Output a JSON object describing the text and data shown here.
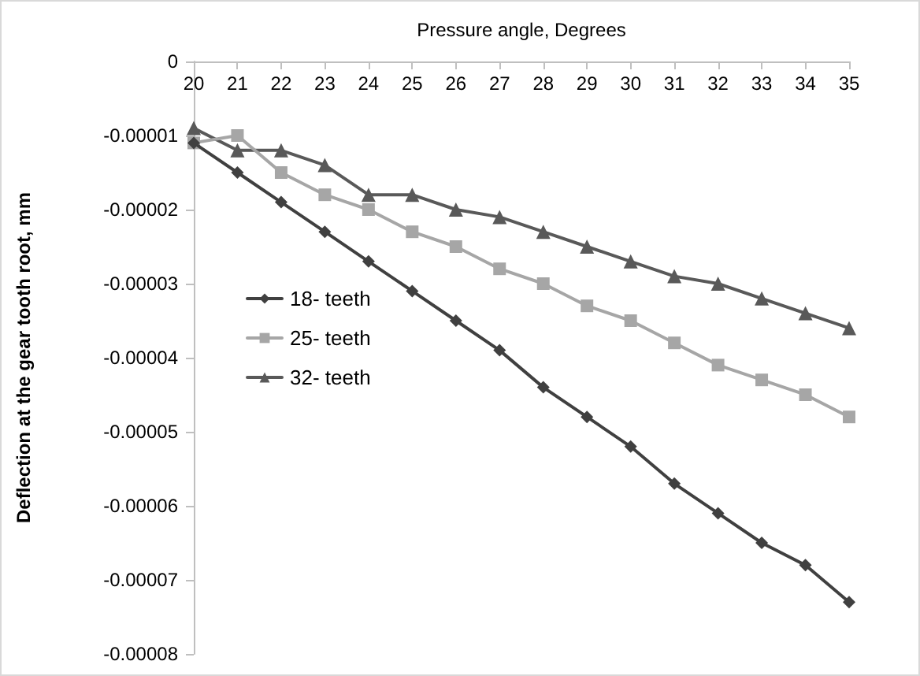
{
  "chart_data": {
    "type": "line",
    "xlabel": "Pressure angle, Degrees",
    "ylabel": "Deflection at the gear tooth root, mm",
    "categories": [
      "20",
      "21",
      "22",
      "23",
      "24",
      "25",
      "26",
      "27",
      "28",
      "29",
      "30",
      "31",
      "32",
      "33",
      "34",
      "35"
    ],
    "series": [
      {
        "name": "18- teeth",
        "color": "#404040",
        "marker": "diamond",
        "values": [
          -1.1e-05,
          -1.5e-05,
          -1.9e-05,
          -2.3e-05,
          -2.7e-05,
          -3.1e-05,
          -3.5e-05,
          -3.9e-05,
          -4.4e-05,
          -4.8e-05,
          -5.2e-05,
          -5.7e-05,
          -6.1e-05,
          -6.5e-05,
          -6.8e-05,
          -7.3e-05
        ]
      },
      {
        "name": "25- teeth",
        "color": "#a6a6a6",
        "marker": "square",
        "values": [
          -1.1e-05,
          -1e-05,
          -1.5e-05,
          -1.8e-05,
          -2e-05,
          -2.3e-05,
          -2.5e-05,
          -2.8e-05,
          -3e-05,
          -3.3e-05,
          -3.5e-05,
          -3.8e-05,
          -4.1e-05,
          -4.3e-05,
          -4.5e-05,
          -4.8e-05
        ]
      },
      {
        "name": "32- teeth",
        "color": "#595959",
        "marker": "triangle",
        "values": [
          -9e-06,
          -1.2e-05,
          -1.2e-05,
          -1.4e-05,
          -1.8e-05,
          -1.8e-05,
          -2e-05,
          -2.1e-05,
          -2.3e-05,
          -2.5e-05,
          -2.7e-05,
          -2.9e-05,
          -3e-05,
          -3.2e-05,
          -3.4e-05,
          -3.6e-05
        ]
      }
    ],
    "ylim": [
      -8e-05,
      0
    ],
    "yticks": [
      {
        "value": -8e-05,
        "label": "-0.00008"
      },
      {
        "value": -7e-05,
        "label": "-0.00007"
      },
      {
        "value": -6e-05,
        "label": "-0.00006"
      },
      {
        "value": -5e-05,
        "label": "-0.00005"
      },
      {
        "value": -4e-05,
        "label": "-0.00004"
      },
      {
        "value": -3e-05,
        "label": "-0.00003"
      },
      {
        "value": -2e-05,
        "label": "-0.00002"
      },
      {
        "value": -1e-05,
        "label": "-0.00001"
      },
      0
    ],
    "grid": false,
    "legend": "left",
    "line_style": "solid"
  }
}
